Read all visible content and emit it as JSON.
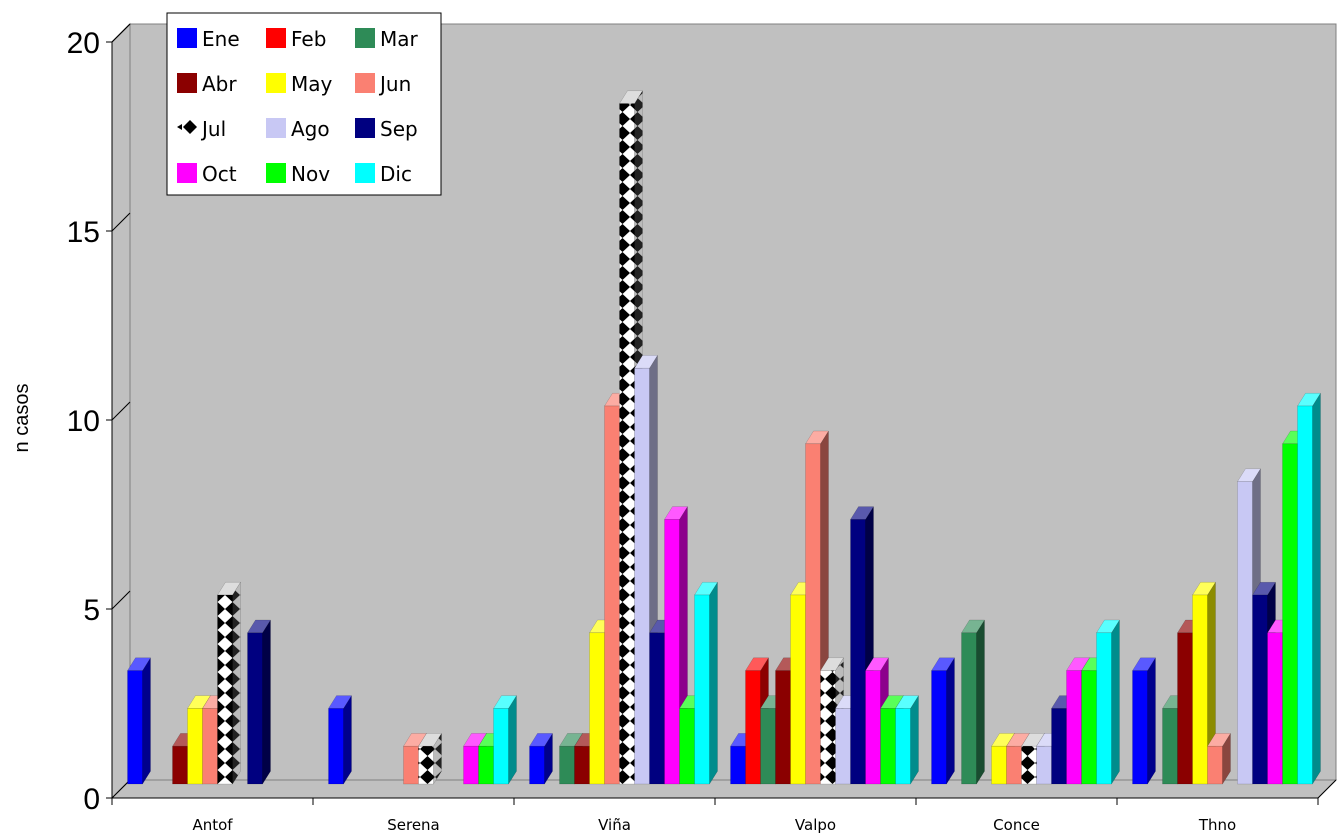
{
  "chart_data": {
    "type": "bar",
    "title": "",
    "xlabel": "",
    "ylabel": "n casos",
    "ylim": [
      0,
      20
    ],
    "yticks": [
      0,
      5,
      10,
      15,
      20
    ],
    "grid": false,
    "legend_position": "top-left",
    "categories": [
      "Antof",
      "Serena",
      "Viña",
      "Valpo",
      "Conce",
      "Thno"
    ],
    "series": [
      {
        "name": "Ene",
        "color": "#0000ff",
        "values": [
          3,
          2,
          1,
          1,
          3,
          3
        ]
      },
      {
        "name": "Feb",
        "color": "#ff0000",
        "values": [
          0,
          0,
          0,
          3,
          0,
          0
        ]
      },
      {
        "name": "Mar",
        "color": "#2e8b57",
        "values": [
          0,
          0,
          1,
          2,
          4,
          2
        ]
      },
      {
        "name": "Abr",
        "color": "#8b0000",
        "values": [
          1,
          0,
          1,
          3,
          0,
          4
        ]
      },
      {
        "name": "May",
        "color": "#ffff00",
        "values": [
          2,
          0,
          4,
          5,
          1,
          5
        ]
      },
      {
        "name": "Jun",
        "color": "#fa8072",
        "values": [
          2,
          1,
          10,
          9,
          1,
          1
        ]
      },
      {
        "name": "Jul",
        "color": "pattern",
        "values": [
          5,
          1,
          18,
          3,
          1,
          0
        ]
      },
      {
        "name": "Ago",
        "color": "#c8c8f4",
        "values": [
          0,
          0,
          11,
          2,
          1,
          8
        ]
      },
      {
        "name": "Sep",
        "color": "#000080",
        "values": [
          4,
          0,
          4,
          7,
          2,
          5
        ]
      },
      {
        "name": "Oct",
        "color": "#ff00ff",
        "values": [
          0,
          1,
          7,
          3,
          3,
          4
        ]
      },
      {
        "name": "Nov",
        "color": "#00ff00",
        "values": [
          0,
          1,
          2,
          2,
          3,
          9
        ]
      },
      {
        "name": "Dic",
        "color": "#00ffff",
        "values": [
          0,
          2,
          5,
          2,
          4,
          10
        ]
      }
    ]
  }
}
